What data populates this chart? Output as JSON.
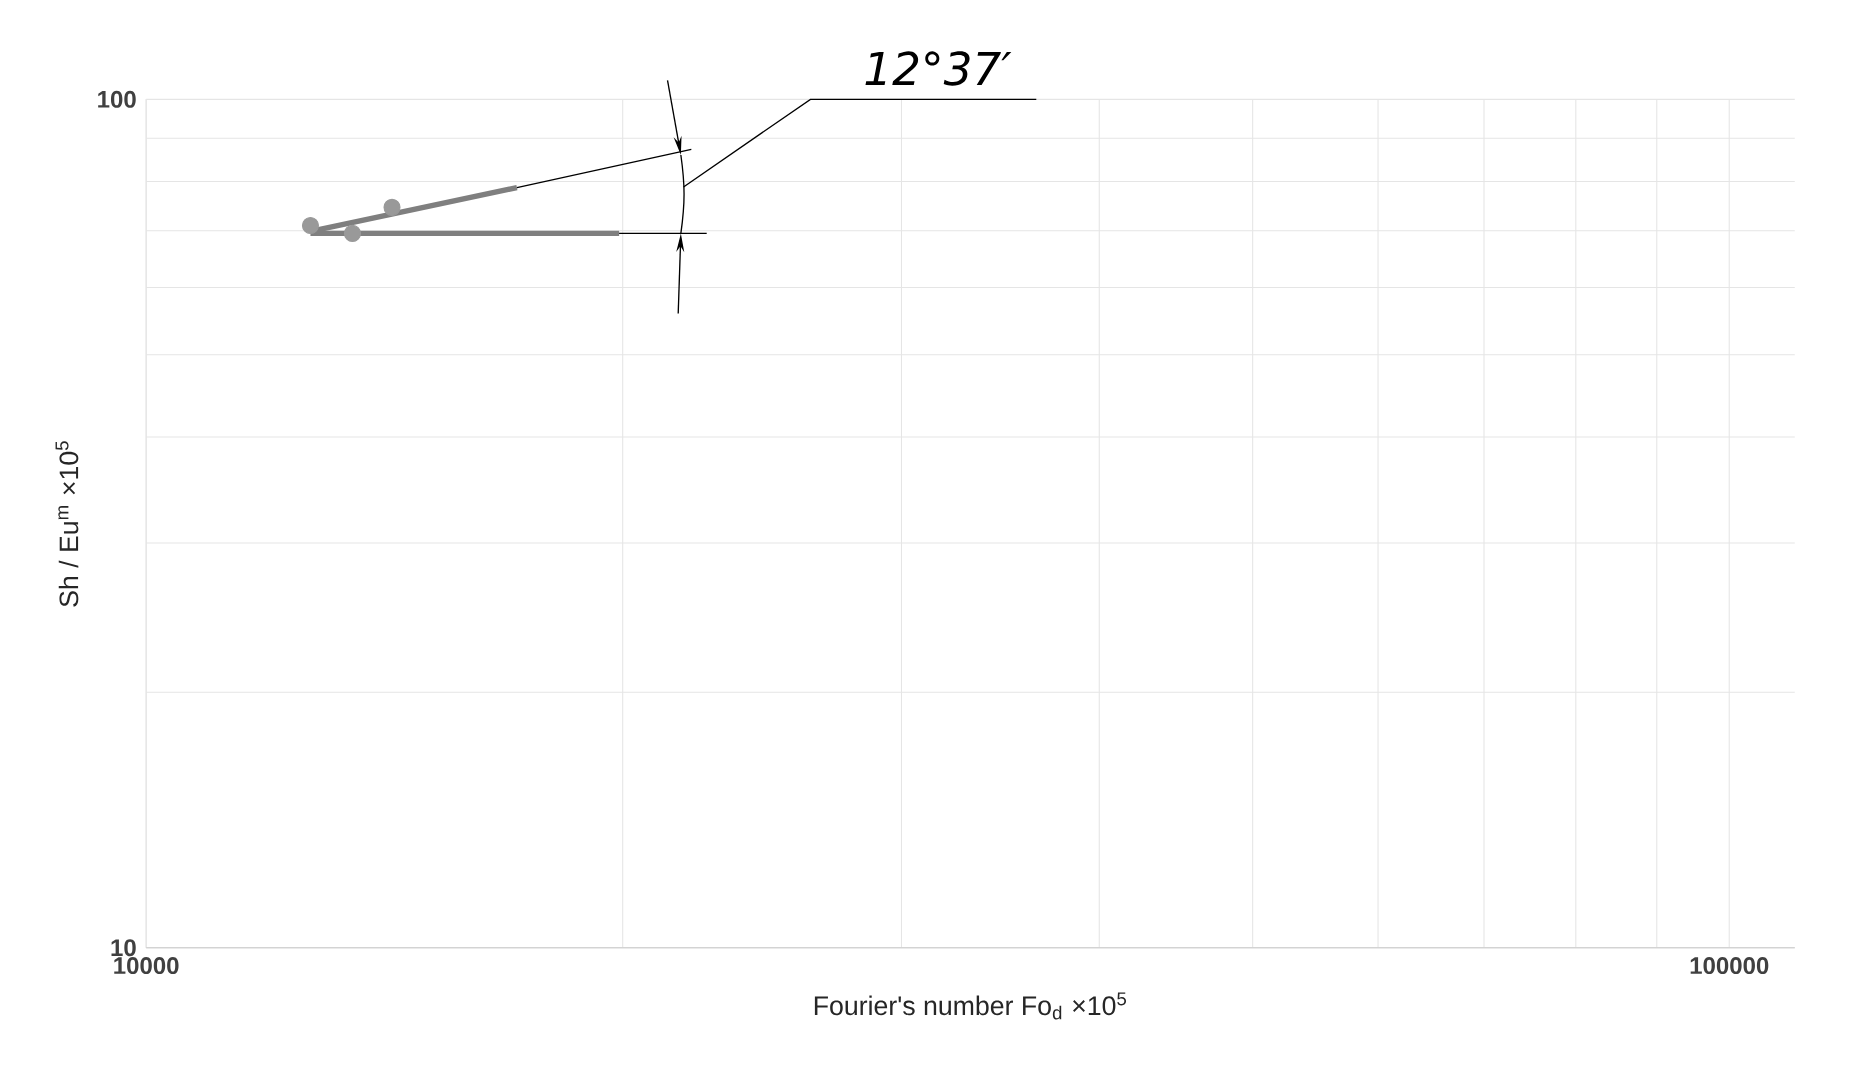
{
  "chart_data": {
    "type": "line",
    "xlabel": "Fourier's number Fo$_{d}$ ×10$^{5}$",
    "ylabel": "Sh / Eu$^{m}$ ×10$^{5}$",
    "log": "xy",
    "grid": true,
    "xlim": [
      10000,
      110000
    ],
    "ylim": [
      10,
      100
    ],
    "xticks": [
      10000,
      100000
    ],
    "yticks": [
      10,
      100
    ],
    "annotations": [
      "12°37′"
    ],
    "series": [
      {
        "type": "scatter",
        "marker": "circle",
        "color": "#999999",
        "x": [
          12700,
          13500,
          14300
        ],
        "values": [
          71,
          69.5,
          74.6
        ]
      },
      {
        "color": "#7f7f7f",
        "x": [
          12700,
          17150
        ],
        "values": [
          69.9,
          78.7
        ]
      },
      {
        "color": "#7f7f7f",
        "x": [
          12700,
          19900
        ],
        "values": [
          69.5,
          69.5
        ]
      },
      {
        "color": "#000000",
        "x": [
          17150,
          22100
        ],
        "values": [
          78.7,
          87.3
        ]
      },
      {
        "color": "#000000",
        "x": [
          19900,
          22600
        ],
        "values": [
          69.5,
          69.5
        ]
      }
    ]
  }
}
